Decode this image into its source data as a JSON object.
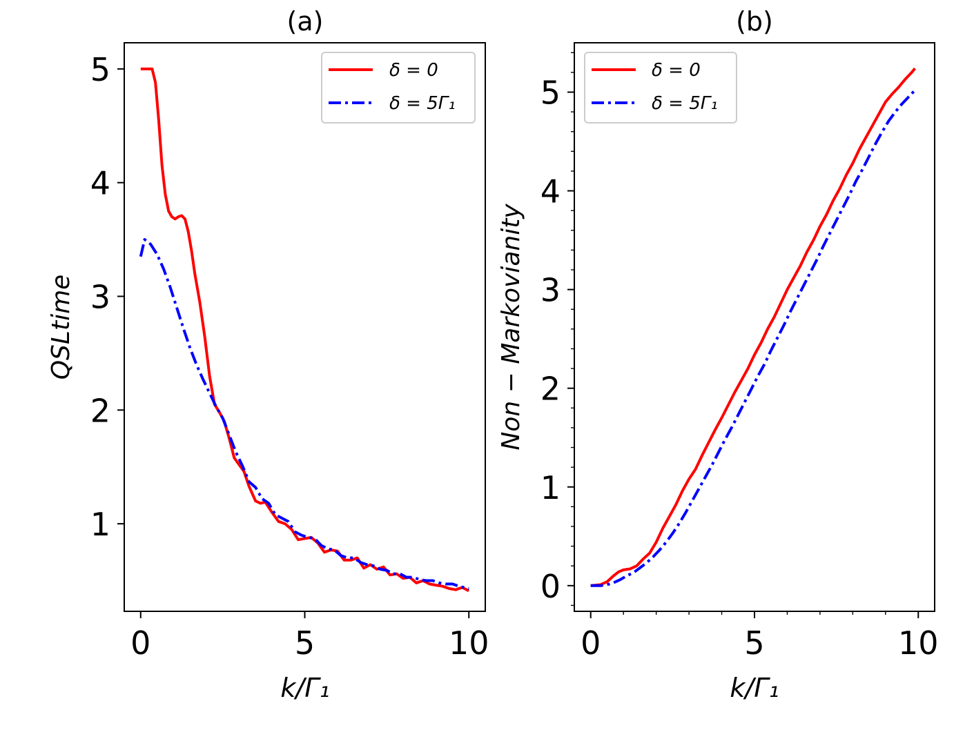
{
  "chart_data": [
    {
      "type": "line",
      "title": "(a)",
      "xlabel": "k/Γ₁",
      "ylabel": "QSLtime",
      "xlim": [
        -0.5,
        10.5
      ],
      "ylim": [
        0.23,
        5.23
      ],
      "xticks": [
        0,
        5,
        10
      ],
      "yticks": [
        1,
        2,
        3,
        4,
        5
      ],
      "legend_position": "top-right",
      "series": [
        {
          "name": "δ = 0",
          "color": "#ff0000",
          "style": "solid",
          "x": [
            0,
            0.35,
            0.45,
            0.55,
            0.65,
            0.75,
            0.85,
            0.95,
            1.05,
            1.15,
            1.25,
            1.35,
            1.45,
            1.55,
            1.65,
            1.8,
            1.95,
            2.1,
            2.25,
            2.4,
            2.55,
            2.7,
            2.85,
            3.0,
            3.15,
            3.3,
            3.5,
            3.65,
            3.8,
            4.0,
            4.2,
            4.4,
            4.6,
            4.8,
            5.0,
            5.2,
            5.4,
            5.6,
            5.8,
            6.0,
            6.2,
            6.4,
            6.6,
            6.8,
            7.0,
            7.2,
            7.4,
            7.6,
            7.8,
            8.0,
            8.2,
            8.4,
            8.6,
            8.8,
            9.0,
            9.2,
            9.4,
            9.6,
            9.8,
            10.0
          ],
          "y": [
            5.0,
            5.0,
            4.88,
            4.55,
            4.15,
            3.9,
            3.75,
            3.7,
            3.68,
            3.7,
            3.71,
            3.68,
            3.57,
            3.4,
            3.2,
            2.95,
            2.65,
            2.3,
            2.05,
            1.98,
            1.9,
            1.75,
            1.58,
            1.52,
            1.46,
            1.33,
            1.2,
            1.18,
            1.19,
            1.1,
            1.02,
            1.0,
            0.95,
            0.86,
            0.87,
            0.88,
            0.83,
            0.75,
            0.77,
            0.76,
            0.68,
            0.68,
            0.7,
            0.61,
            0.64,
            0.6,
            0.62,
            0.55,
            0.56,
            0.52,
            0.53,
            0.48,
            0.5,
            0.47,
            0.46,
            0.45,
            0.43,
            0.42,
            0.44,
            0.41
          ]
        },
        {
          "name": "δ = 5Γ₁",
          "color": "#0000ff",
          "style": "dashdot",
          "x": [
            0,
            0.12,
            0.3,
            0.5,
            0.7,
            0.9,
            1.1,
            1.3,
            1.5,
            1.7,
            1.9,
            2.1,
            2.3,
            2.5,
            2.7,
            2.9,
            3.1,
            3.3,
            3.5,
            3.7,
            3.9,
            4.1,
            4.3,
            4.5,
            4.7,
            4.9,
            5.1,
            5.3,
            5.5,
            5.7,
            5.9,
            6.1,
            6.3,
            6.5,
            6.7,
            6.9,
            7.1,
            7.3,
            7.5,
            7.7,
            7.9,
            8.1,
            8.3,
            8.5,
            8.7,
            8.9,
            9.1,
            9.3,
            9.5,
            9.7,
            10.0
          ],
          "y": [
            3.35,
            3.5,
            3.46,
            3.37,
            3.24,
            3.08,
            2.9,
            2.72,
            2.55,
            2.4,
            2.27,
            2.15,
            2.03,
            1.93,
            1.78,
            1.63,
            1.51,
            1.37,
            1.32,
            1.22,
            1.18,
            1.08,
            1.05,
            1.02,
            0.93,
            0.9,
            0.88,
            0.87,
            0.81,
            0.78,
            0.77,
            0.72,
            0.7,
            0.7,
            0.66,
            0.64,
            0.63,
            0.6,
            0.59,
            0.56,
            0.56,
            0.53,
            0.53,
            0.51,
            0.5,
            0.5,
            0.48,
            0.47,
            0.47,
            0.45,
            0.43
          ]
        }
      ]
    },
    {
      "type": "line",
      "title": "(b)",
      "xlabel": "k/Γ₁",
      "ylabel": "Non − Markovianity",
      "xlim": [
        -0.5,
        10.5
      ],
      "ylim": [
        -0.26,
        5.5
      ],
      "xticks": [
        0,
        5,
        10
      ],
      "yticks": [
        0,
        1,
        2,
        3,
        4,
        5
      ],
      "legend_position": "top-left",
      "series": [
        {
          "name": "δ = 0",
          "color": "#ff0000",
          "style": "solid",
          "x": [
            0,
            0.3,
            0.5,
            0.7,
            0.85,
            1.0,
            1.2,
            1.4,
            1.6,
            1.8,
            2.0,
            2.2,
            2.4,
            2.6,
            2.8,
            3.0,
            3.2,
            3.4,
            3.6,
            3.8,
            4.0,
            4.2,
            4.4,
            4.6,
            4.8,
            5.0,
            5.2,
            5.4,
            5.6,
            5.8,
            6.0,
            6.2,
            6.4,
            6.6,
            6.8,
            7.0,
            7.2,
            7.4,
            7.6,
            7.8,
            8.0,
            8.2,
            8.4,
            8.6,
            8.8,
            9.0,
            9.2,
            9.4,
            9.6,
            9.8,
            9.9
          ],
          "y": [
            0.0,
            0.01,
            0.04,
            0.1,
            0.14,
            0.16,
            0.17,
            0.2,
            0.27,
            0.33,
            0.44,
            0.58,
            0.7,
            0.82,
            0.96,
            1.08,
            1.18,
            1.32,
            1.45,
            1.58,
            1.7,
            1.83,
            1.96,
            2.08,
            2.2,
            2.34,
            2.46,
            2.6,
            2.72,
            2.86,
            3.0,
            3.12,
            3.24,
            3.38,
            3.5,
            3.64,
            3.76,
            3.9,
            4.02,
            4.16,
            4.28,
            4.42,
            4.54,
            4.66,
            4.78,
            4.9,
            4.98,
            5.05,
            5.13,
            5.2,
            5.24
          ]
        },
        {
          "name": "δ = 5Γ₁",
          "color": "#0000ff",
          "style": "dashdot",
          "x": [
            0,
            0.3,
            0.5,
            0.7,
            0.9,
            1.1,
            1.3,
            1.5,
            1.7,
            1.9,
            2.1,
            2.3,
            2.5,
            2.7,
            2.9,
            3.1,
            3.3,
            3.5,
            3.7,
            3.9,
            4.1,
            4.3,
            4.5,
            4.7,
            4.9,
            5.1,
            5.3,
            5.5,
            5.7,
            5.9,
            6.1,
            6.3,
            6.5,
            6.7,
            6.9,
            7.1,
            7.3,
            7.5,
            7.7,
            7.9,
            8.1,
            8.3,
            8.5,
            8.7,
            8.9,
            9.1,
            9.3,
            9.5,
            9.7,
            9.9
          ],
          "y": [
            0.0,
            0.0,
            0.01,
            0.03,
            0.06,
            0.1,
            0.13,
            0.18,
            0.23,
            0.29,
            0.36,
            0.44,
            0.53,
            0.63,
            0.74,
            0.86,
            0.98,
            1.1,
            1.22,
            1.35,
            1.48,
            1.6,
            1.73,
            1.86,
            1.99,
            2.12,
            2.24,
            2.38,
            2.51,
            2.64,
            2.78,
            2.91,
            3.04,
            3.17,
            3.3,
            3.44,
            3.57,
            3.7,
            3.83,
            3.96,
            4.1,
            4.22,
            4.35,
            4.48,
            4.6,
            4.71,
            4.8,
            4.88,
            4.95,
            5.02
          ]
        }
      ]
    }
  ]
}
